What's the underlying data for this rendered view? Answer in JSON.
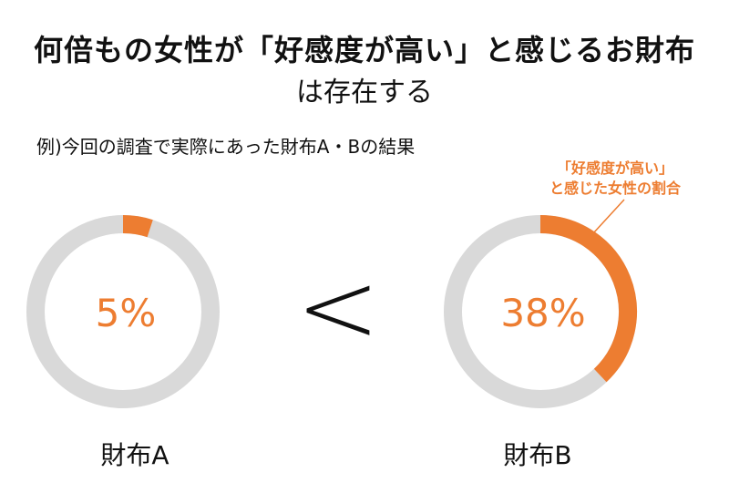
{
  "header": {
    "title": "何倍もの女性が「好感度が高い」と感じるお財布",
    "subtitle": "は存在する"
  },
  "note": "例)今回の調査で実際にあった財布A・Bの結果",
  "annotation": {
    "line1": "「好感度が高い」",
    "line2": "と感じた女性の割合"
  },
  "comparison_symbol": "<",
  "colors": {
    "accent": "#ED7D31",
    "track": "#D9D9D9",
    "text": "#111111"
  },
  "chart_data": [
    {
      "type": "pie",
      "variant": "donut",
      "category": "財布A",
      "values": [
        5,
        95
      ],
      "value_label": "5%"
    },
    {
      "type": "pie",
      "variant": "donut",
      "category": "財布B",
      "values": [
        38,
        62
      ],
      "value_label": "38%"
    }
  ]
}
